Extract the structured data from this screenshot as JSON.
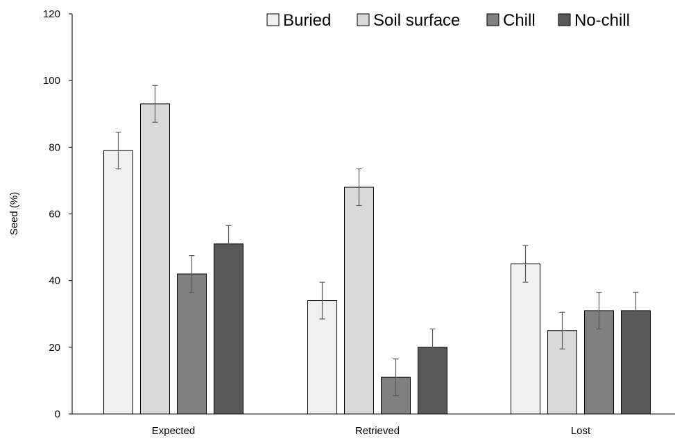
{
  "chart_data": {
    "type": "bar",
    "title": "",
    "xlabel": "",
    "ylabel": "Seed (%)",
    "ylim": [
      0,
      120
    ],
    "yticks": [
      0,
      20,
      40,
      60,
      80,
      100,
      120
    ],
    "grid": false,
    "legend_position": "top-right",
    "categories": [
      "Expected",
      "Retrieved",
      "Lost"
    ],
    "series": [
      {
        "name": "Buried",
        "color": "#f0f0f0",
        "values": [
          79,
          34,
          45
        ],
        "errors": [
          5.5,
          5.5,
          5.5
        ]
      },
      {
        "name": "Soil surface",
        "color": "#d9d9d9",
        "values": [
          93,
          68,
          25
        ],
        "errors": [
          5.5,
          5.5,
          5.5
        ]
      },
      {
        "name": "Chill",
        "color": "#808080",
        "values": [
          42,
          11,
          31
        ],
        "errors": [
          5.5,
          5.5,
          5.5
        ]
      },
      {
        "name": "No-chill",
        "color": "#595959",
        "values": [
          51,
          20,
          31
        ],
        "errors": [
          5.5,
          5.5,
          5.5
        ]
      }
    ]
  }
}
